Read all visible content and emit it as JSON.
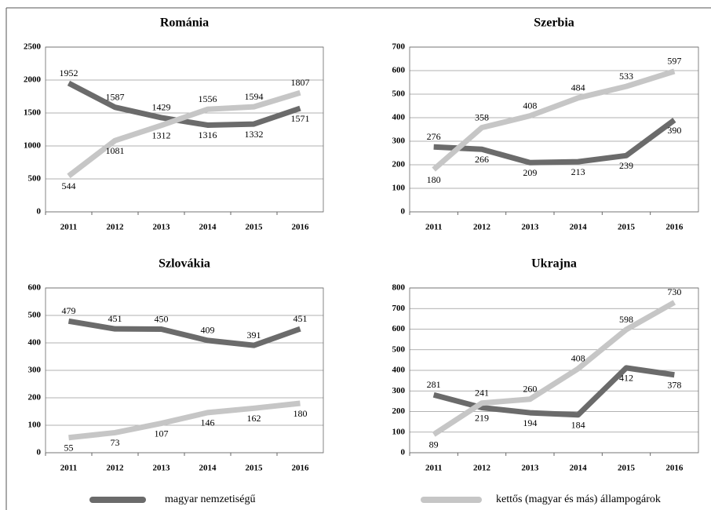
{
  "legend": [
    {
      "name": "magyar nemzetiségű",
      "color": "#6b6b6b"
    },
    {
      "name": "kettős (magyar és más) állampogárok",
      "color": "#c6c6c6"
    }
  ],
  "chart_data": [
    {
      "type": "line",
      "title": "Románia",
      "categories": [
        "2011",
        "2012",
        "2013",
        "2014",
        "2015",
        "2016"
      ],
      "series": [
        {
          "values": [
            1952,
            1587,
            1429,
            1316,
            1332,
            1571
          ]
        },
        {
          "values": [
            544,
            1081,
            1312,
            1556,
            1594,
            1807
          ]
        }
      ],
      "ylim": [
        0,
        2500
      ],
      "yticks": [
        0,
        500,
        1000,
        1500,
        2000,
        2500
      ],
      "grid": true
    },
    {
      "type": "line",
      "title": "Szerbia",
      "categories": [
        "2011",
        "2012",
        "2013",
        "2014",
        "2015",
        "2016"
      ],
      "series": [
        {
          "values": [
            276,
            266,
            209,
            213,
            239,
            390
          ]
        },
        {
          "values": [
            180,
            358,
            408,
            484,
            533,
            597
          ]
        }
      ],
      "ylim": [
        0,
        700
      ],
      "yticks": [
        0,
        100,
        200,
        300,
        400,
        500,
        600,
        700
      ],
      "grid": true
    },
    {
      "type": "line",
      "title": "Szlovákia",
      "categories": [
        "2011",
        "2012",
        "2013",
        "2014",
        "2015",
        "2016"
      ],
      "series": [
        {
          "values": [
            479,
            451,
            450,
            409,
            391,
            451
          ]
        },
        {
          "values": [
            55,
            73,
            107,
            146,
            162,
            180
          ]
        }
      ],
      "ylim": [
        0,
        600
      ],
      "yticks": [
        0,
        100,
        200,
        300,
        400,
        500,
        600
      ],
      "grid": true
    },
    {
      "type": "line",
      "title": "Ukrajna",
      "categories": [
        "2011",
        "2012",
        "2013",
        "2014",
        "2015",
        "2016"
      ],
      "series": [
        {
          "values": [
            281,
            219,
            194,
            184,
            412,
            378
          ]
        },
        {
          "values": [
            89,
            241,
            260,
            408,
            598,
            730
          ]
        }
      ],
      "ylim": [
        0,
        800
      ],
      "yticks": [
        0,
        100,
        200,
        300,
        400,
        500,
        600,
        700,
        800
      ],
      "grid": true
    }
  ]
}
